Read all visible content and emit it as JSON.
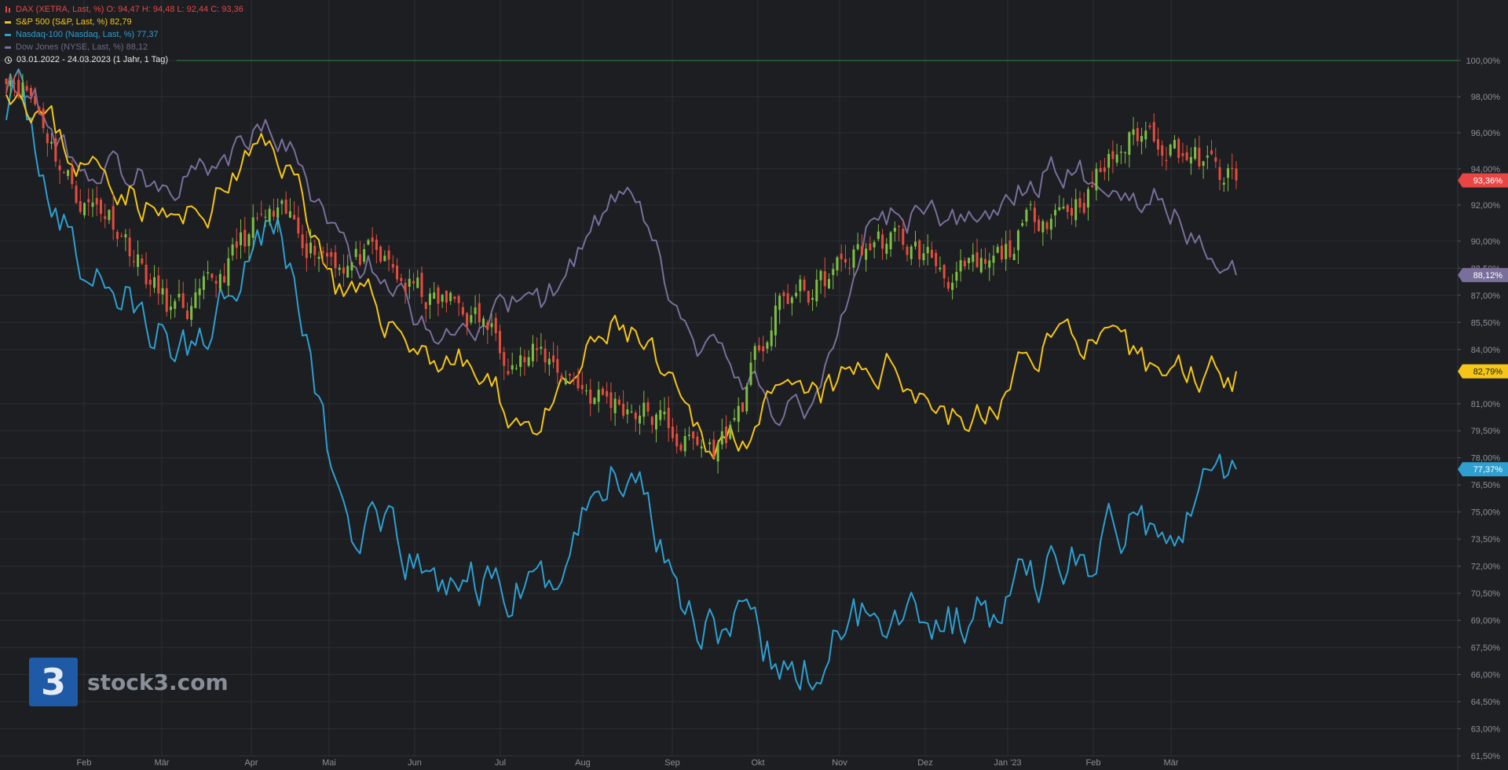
{
  "legend": {
    "dax": "DAX (XETRA, Last, %)  O: 94,47  H: 94,48  L: 92,44  C: 93,36",
    "sp500": "S&P 500 (S&P, Last, %)  82,79",
    "nasdaq": "Nasdaq-100 (Nasdaq, Last, %)  77,37",
    "dow": "Dow Jones (NYSE, Last, %)  88,12",
    "range": "03.01.2022 - 24.03.2023   (1 Jahr, 1 Tag)"
  },
  "logo": {
    "mark": "3",
    "text": "stock3.com"
  },
  "colors": {
    "background": "#1c1e22",
    "grid": "#2b2e33",
    "dax_up": "#7cc043",
    "dax_down": "#e74c3c",
    "dax_label": "#e84545",
    "sp500": "#f5c518",
    "nasdaq": "#2e9fd0",
    "dow": "#7a6e9a",
    "baseline": "#2e8b3a"
  },
  "chart_data": {
    "type": "line",
    "title": "",
    "xlabel": "",
    "ylabel": "",
    "ylim": [
      61.5,
      100
    ],
    "y_ticks": [
      "100,00%",
      "98,00%",
      "96,00%",
      "94,00%",
      "92,00%",
      "90,00%",
      "88,50%",
      "87,00%",
      "85,50%",
      "84,00%",
      "81,00%",
      "79,50%",
      "78,00%",
      "76,50%",
      "75,00%",
      "73,50%",
      "72,00%",
      "70,50%",
      "69,00%",
      "67,50%",
      "66,00%",
      "64,50%",
      "63,00%",
      "61,50%"
    ],
    "x_labels": [
      "Feb",
      "Mär",
      "Apr",
      "Mai",
      "Jun",
      "Jul",
      "Aug",
      "Sep",
      "Okt",
      "Nov",
      "Dez",
      "Jan '23",
      "Feb",
      "Mär"
    ],
    "categories": [
      "2022-01",
      "2022-02",
      "2022-03",
      "2022-04",
      "2022-05",
      "2022-06",
      "2022-07",
      "2022-08",
      "2022-09",
      "2022-10",
      "2022-11",
      "2022-12",
      "2023-01",
      "2023-02",
      "2023-03"
    ],
    "last_labels": [
      "93,36%",
      "88,12%",
      "82,79%",
      "77,37%"
    ],
    "series": [
      {
        "name": "DAX (XETRA, Last, %)",
        "style": "candle",
        "values": [
          99.5,
          92.0,
          86.0,
          91.0,
          89.0,
          86.5,
          83.5,
          81.0,
          78.5,
          87.0,
          90.0,
          88.0,
          92.0,
          96.0,
          93.36
        ]
      },
      {
        "name": "S&P 500 (S&P, Last, %)",
        "values": [
          99.0,
          94.0,
          91.0,
          95.0,
          86.5,
          83.5,
          80.0,
          85.0,
          79.0,
          81.0,
          83.0,
          80.0,
          85.0,
          83.0,
          82.79
        ]
      },
      {
        "name": "Nasdaq-100 (Nasdaq, Last, %)",
        "values": [
          98.0,
          88.0,
          84.0,
          91.0,
          74.0,
          71.0,
          70.5,
          77.5,
          69.0,
          66.0,
          70.0,
          69.0,
          72.0,
          74.5,
          77.37
        ]
      },
      {
        "name": "Dow Jones (NYSE, Last, %)",
        "values": [
          99.0,
          94.0,
          93.5,
          96.0,
          89.0,
          85.0,
          86.5,
          92.0,
          83.5,
          80.5,
          91.5,
          91.0,
          94.0,
          92.5,
          88.12
        ]
      }
    ]
  }
}
